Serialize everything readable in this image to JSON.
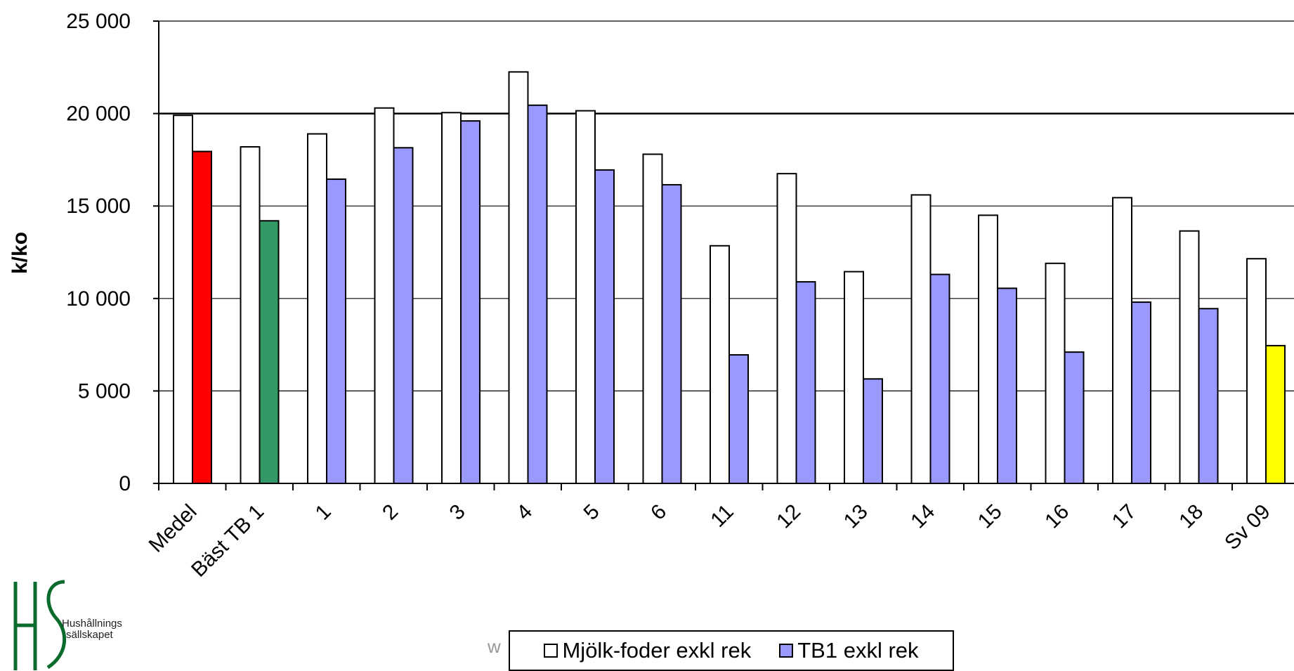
{
  "chart_data": {
    "type": "bar",
    "ylabel": "k/ko",
    "xlabel": "",
    "title": "",
    "ylim": [
      0,
      25000
    ],
    "yticks": [
      "0",
      "5 000",
      "10 000",
      "15 000",
      "20 000",
      "25 000"
    ],
    "ytick_values": [
      0,
      5000,
      10000,
      15000,
      20000,
      25000
    ],
    "grid": true,
    "legend_position": "bottom",
    "categories": [
      "Medel",
      "Bäst TB 1",
      "1",
      "2",
      "3",
      "4",
      "5",
      "6",
      "11",
      "12",
      "13",
      "14",
      "15",
      "16",
      "17",
      "18",
      "Sv 09"
    ],
    "series": [
      {
        "name": "Mjölk-foder exkl rek",
        "color": "#ffffff",
        "values": [
          19900,
          18200,
          18900,
          20300,
          20050,
          22250,
          20150,
          17800,
          12850,
          16750,
          11450,
          15600,
          14500,
          11900,
          15450,
          13650,
          12150
        ]
      },
      {
        "name": "TB1 exkl rek",
        "color": "#9999ff",
        "values": [
          17950,
          14200,
          16450,
          18150,
          19600,
          20450,
          16950,
          16150,
          6950,
          10900,
          5650,
          11300,
          10550,
          7100,
          9800,
          9450,
          7450
        ]
      }
    ],
    "highlight_colors": {
      "Medel": "#ff0000",
      "Bäst TB 1": "#339966",
      "Sv 09": "#ffff00"
    }
  },
  "logo": {
    "line1": "Hushållnings",
    "line2": "sällskapet"
  },
  "partial_text": "w"
}
